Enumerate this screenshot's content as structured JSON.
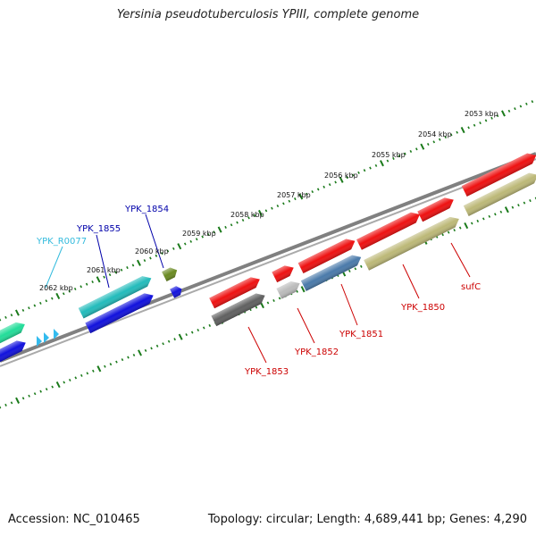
{
  "title": "Yersinia pseudotuberculosis YPIII, complete genome",
  "footer": {
    "accession": "Accession: NC_010465",
    "summary": "Topology: circular; Length: 4,689,441 bp; Genes: 4,290"
  },
  "scale_ticks": [
    {
      "label": "2053 kbp",
      "kbp": 2053
    },
    {
      "label": "2054 kbp",
      "kbp": 2054
    },
    {
      "label": "2055 kbp",
      "kbp": 2055
    },
    {
      "label": "2056 kbp",
      "kbp": 2056
    },
    {
      "label": "2057 kbp",
      "kbp": 2057
    },
    {
      "label": "2058 kbp",
      "kbp": 2058
    },
    {
      "label": "2059 kbp",
      "kbp": 2059
    },
    {
      "label": "2060 kbp",
      "kbp": 2060
    },
    {
      "label": "2061 kbp",
      "kbp": 2061
    },
    {
      "label": "2062 kbp",
      "kbp": 2062
    }
  ],
  "gene_labels": [
    {
      "name": "YPK_1855",
      "color": "#0000aa"
    },
    {
      "name": "YPK_1854",
      "color": "#0000aa"
    },
    {
      "name": "YPK_R0077",
      "color": "#33bbdd"
    },
    {
      "name": "YPK_1853",
      "color": "#cc0000"
    },
    {
      "name": "YPK_1852",
      "color": "#cc0000"
    },
    {
      "name": "YPK_1851",
      "color": "#cc0000"
    },
    {
      "name": "YPK_1850",
      "color": "#cc0000"
    },
    {
      "name": "sufC",
      "color": "#cc0000"
    }
  ],
  "colors": {
    "backbone": "#808080",
    "tick": "#1a7a1a",
    "red": "#ee1111",
    "blue": "#1111dd",
    "cyan": "#22bbbb",
    "olive": "#bcb877",
    "steel": "#4a7aaa",
    "dark-gray": "#606060",
    "light-gray": "#bbbbbb",
    "green-small": "#6a8a22",
    "teal": "#22dd99",
    "light-blue": "#33bbee"
  }
}
